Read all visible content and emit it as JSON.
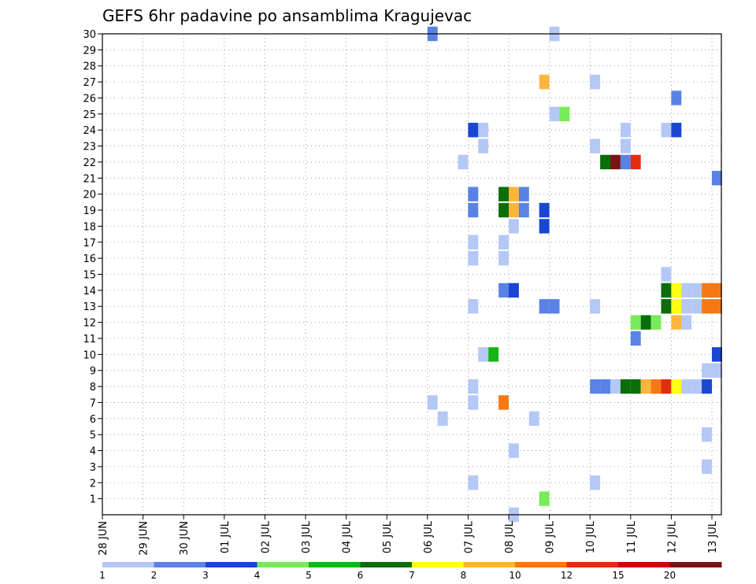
{
  "chart_data": {
    "type": "heatmap",
    "title": "GEFS 6hr padavine po ansamblima Kragujevac",
    "x_unit": "6-hour steps",
    "x_range_days": [
      0,
      15.25
    ],
    "y_range": [
      0,
      30
    ],
    "y_ticks": [
      1,
      2,
      3,
      4,
      5,
      6,
      7,
      8,
      9,
      10,
      11,
      12,
      13,
      14,
      15,
      16,
      17,
      18,
      19,
      20,
      21,
      22,
      23,
      24,
      25,
      26,
      27,
      28,
      29,
      30
    ],
    "x_ticks": [
      "28 JUN",
      "29 JUN",
      "30 JUN",
      "01 JUL",
      "02 JUL",
      "03 JUL",
      "04 JUL",
      "05 JUL",
      "06 JUL",
      "07 JUL",
      "08 JUL",
      "09 JUL",
      "10 JUL",
      "11 JUL",
      "12 JUL",
      "13 JUL"
    ],
    "grid": true,
    "legend": {
      "placement": "bottom",
      "labels": [
        "1",
        "2",
        "3",
        "4",
        "5",
        "6",
        "7",
        "8",
        "10",
        "12",
        "15",
        "20"
      ],
      "colors": [
        "#b4c8f5",
        "#5a82e6",
        "#1a46d2",
        "#78eb5a",
        "#14b414",
        "#0a6e0a",
        "#ffff14",
        "#ffb43c",
        "#f57814",
        "#e12d0f",
        "#c80a0a",
        "#781414"
      ]
    },
    "cells": [
      {
        "m": 30,
        "t": 32,
        "v": 2
      },
      {
        "m": 30,
        "t": 44,
        "v": 1
      },
      {
        "m": 27,
        "t": 43,
        "v": 8
      },
      {
        "m": 27,
        "t": 48,
        "v": 1
      },
      {
        "m": 26,
        "t": 56,
        "v": 2
      },
      {
        "m": 25,
        "t": 44,
        "v": 1
      },
      {
        "m": 25,
        "t": 45,
        "v": 4
      },
      {
        "m": 24,
        "t": 36,
        "v": 3
      },
      {
        "m": 24,
        "t": 37,
        "v": 1
      },
      {
        "m": 24,
        "t": 51,
        "v": 1
      },
      {
        "m": 24,
        "t": 55,
        "v": 1
      },
      {
        "m": 24,
        "t": 56,
        "v": 3
      },
      {
        "m": 23,
        "t": 37,
        "v": 1
      },
      {
        "m": 23,
        "t": 48,
        "v": 1
      },
      {
        "m": 23,
        "t": 51,
        "v": 1
      },
      {
        "m": 22,
        "t": 35,
        "v": 1
      },
      {
        "m": 22,
        "t": 49,
        "v": 6
      },
      {
        "m": 22,
        "t": 50,
        "v": 20
      },
      {
        "m": 22,
        "t": 51,
        "v": 2
      },
      {
        "m": 22,
        "t": 52,
        "v": 12
      },
      {
        "m": 21,
        "t": 60,
        "v": 2
      },
      {
        "m": 20,
        "t": 36,
        "v": 2
      },
      {
        "m": 20,
        "t": 39,
        "v": 6
      },
      {
        "m": 20,
        "t": 40,
        "v": 8
      },
      {
        "m": 20,
        "t": 41,
        "v": 2
      },
      {
        "m": 19,
        "t": 36,
        "v": 2
      },
      {
        "m": 19,
        "t": 39,
        "v": 6
      },
      {
        "m": 19,
        "t": 40,
        "v": 8
      },
      {
        "m": 19,
        "t": 41,
        "v": 2
      },
      {
        "m": 19,
        "t": 43,
        "v": 3
      },
      {
        "m": 18,
        "t": 40,
        "v": 1
      },
      {
        "m": 18,
        "t": 43,
        "v": 3
      },
      {
        "m": 17,
        "t": 36,
        "v": 1
      },
      {
        "m": 17,
        "t": 39,
        "v": 1
      },
      {
        "m": 16,
        "t": 36,
        "v": 1
      },
      {
        "m": 16,
        "t": 39,
        "v": 1
      },
      {
        "m": 15,
        "t": 55,
        "v": 1
      },
      {
        "m": 14,
        "t": 39,
        "v": 2
      },
      {
        "m": 14,
        "t": 40,
        "v": 3
      },
      {
        "m": 14,
        "t": 55,
        "v": 1
      },
      {
        "m": 14,
        "t": 55,
        "v": 6
      },
      {
        "m": 14,
        "t": 56,
        "v": 7
      },
      {
        "m": 14,
        "t": 57,
        "v": 1
      },
      {
        "m": 14,
        "t": 58,
        "v": 1
      },
      {
        "m": 14,
        "t": 59,
        "v": 10
      },
      {
        "m": 14,
        "t": 60,
        "v": 10
      },
      {
        "m": 13,
        "t": 36,
        "v": 1
      },
      {
        "m": 13,
        "t": 43,
        "v": 2
      },
      {
        "m": 13,
        "t": 44,
        "v": 2
      },
      {
        "m": 13,
        "t": 48,
        "v": 1
      },
      {
        "m": 13,
        "t": 55,
        "v": 6
      },
      {
        "m": 13,
        "t": 56,
        "v": 7
      },
      {
        "m": 13,
        "t": 57,
        "v": 1
      },
      {
        "m": 13,
        "t": 58,
        "v": 1
      },
      {
        "m": 13,
        "t": 59,
        "v": 10
      },
      {
        "m": 13,
        "t": 60,
        "v": 10
      },
      {
        "m": 12,
        "t": 52,
        "v": 4
      },
      {
        "m": 12,
        "t": 53,
        "v": 6
      },
      {
        "m": 12,
        "t": 54,
        "v": 4
      },
      {
        "m": 12,
        "t": 56,
        "v": 8
      },
      {
        "m": 12,
        "t": 57,
        "v": 1
      },
      {
        "m": 11,
        "t": 52,
        "v": 2
      },
      {
        "m": 10,
        "t": 37,
        "v": 1
      },
      {
        "m": 10,
        "t": 38,
        "v": 5
      },
      {
        "m": 10,
        "t": 60,
        "v": 3
      },
      {
        "m": 9,
        "t": 59,
        "v": 1
      },
      {
        "m": 9,
        "t": 60,
        "v": 1
      },
      {
        "m": 8,
        "t": 36,
        "v": 1
      },
      {
        "m": 8,
        "t": 48,
        "v": 2
      },
      {
        "m": 8,
        "t": 49,
        "v": 2
      },
      {
        "m": 8,
        "t": 50,
        "v": 1
      },
      {
        "m": 8,
        "t": 51,
        "v": 6
      },
      {
        "m": 8,
        "t": 52,
        "v": 6
      },
      {
        "m": 8,
        "t": 53,
        "v": 8
      },
      {
        "m": 8,
        "t": 54,
        "v": 10
      },
      {
        "m": 8,
        "t": 55,
        "v": 12
      },
      {
        "m": 8,
        "t": 56,
        "v": 7
      },
      {
        "m": 8,
        "t": 57,
        "v": 1
      },
      {
        "m": 8,
        "t": 58,
        "v": 1
      },
      {
        "m": 8,
        "t": 59,
        "v": 3
      },
      {
        "m": 7,
        "t": 32,
        "v": 1
      },
      {
        "m": 7,
        "t": 36,
        "v": 1
      },
      {
        "m": 7,
        "t": 39,
        "v": 10
      },
      {
        "m": 6,
        "t": 33,
        "v": 1
      },
      {
        "m": 6,
        "t": 42,
        "v": 1
      },
      {
        "m": 5,
        "t": 59,
        "v": 1
      },
      {
        "m": 4,
        "t": 40,
        "v": 1
      },
      {
        "m": 3,
        "t": 59,
        "v": 1
      },
      {
        "m": 2,
        "t": 36,
        "v": 1
      },
      {
        "m": 2,
        "t": 48,
        "v": 1
      },
      {
        "m": 1,
        "t": 43,
        "v": 4
      },
      {
        "m": 0,
        "t": 40,
        "v": 1
      }
    ]
  }
}
